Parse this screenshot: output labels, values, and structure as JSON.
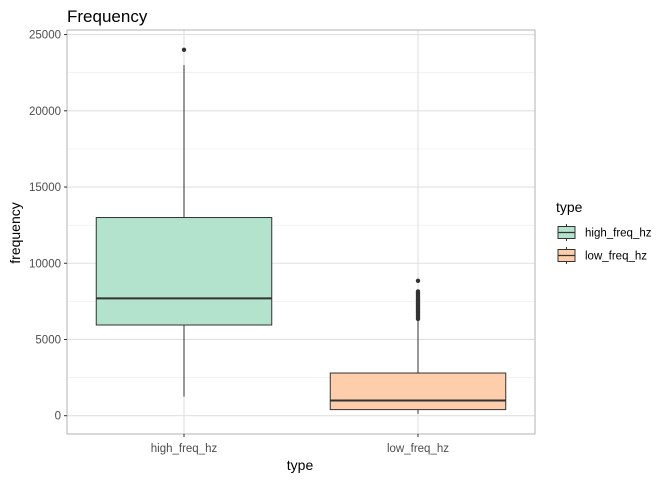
{
  "chart_data": {
    "type": "box",
    "title": "Frequency",
    "xlabel": "type",
    "ylabel": "frequency",
    "ylim": [
      -1200,
      25300
    ],
    "y_ticks": [
      0,
      5000,
      10000,
      15000,
      20000,
      25000
    ],
    "categories": [
      "high_freq_hz",
      "low_freq_hz"
    ],
    "boxes": [
      {
        "category": "high_freq_hz",
        "whisker_low": 1250,
        "q1": 5950,
        "median": 7700,
        "q3": 13000,
        "whisker_high": 23000,
        "outliers": [
          24000
        ],
        "fill": "#b3e2cd"
      },
      {
        "category": "low_freq_hz",
        "whisker_low": 130,
        "q1": 400,
        "median": 1000,
        "q3": 2800,
        "whisker_high": 6300,
        "outliers": [
          6350,
          6450,
          6550,
          6650,
          6750,
          6850,
          6950,
          7050,
          7150,
          7250,
          7350,
          7450,
          7550,
          7650,
          7750,
          7850,
          7950,
          8050,
          8150,
          8850
        ],
        "fill": "#fdcdac"
      }
    ],
    "grid": true,
    "legend": {
      "title": "type",
      "position": "right",
      "entries": [
        {
          "label": "high_freq_hz",
          "fill": "#b3e2cd"
        },
        {
          "label": "low_freq_hz",
          "fill": "#fdcdac"
        }
      ]
    },
    "colors": {
      "grid": "#ebebeb",
      "panel_border": "#b3b3b3",
      "box_line": "#333333",
      "outlier": "#333333"
    }
  }
}
